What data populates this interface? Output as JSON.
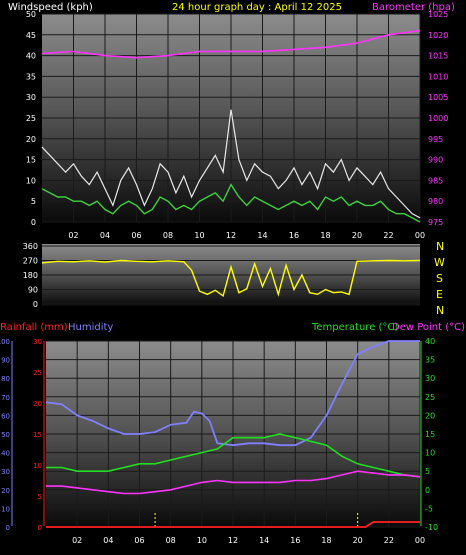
{
  "header": {
    "left_title": "Windspeed (kph)",
    "center_title": "24 hour graph day : April 12 2025",
    "right_title": "Barometer (hpa)"
  },
  "colors": {
    "background": "#000000",
    "plot_top": "#8c8c8c",
    "plot_bottom": "#0a0a0a",
    "windspeed": "#e8e8e8",
    "wind_avg": "#3fcf3f",
    "barometer": "#ff33ff",
    "direction": "#ffff00",
    "temperature": "#22dd22",
    "dew_point": "#ff33ff",
    "humidity": "#8080ff",
    "rainfall": "#ff2020",
    "marker": "#ffff00"
  },
  "labels": {
    "direction_letters": [
      "N",
      "W",
      "S",
      "E",
      "N"
    ],
    "rainfall": "Rainfall (mm)",
    "humidity": "Humidity",
    "temperature": "Temperature (°C)",
    "dew_point": "Dew Point (°C)"
  },
  "chart_data": [
    {
      "type": "line",
      "id": "wind-baro",
      "x": {
        "label": "",
        "ticks": [
          "02",
          "04",
          "06",
          "08",
          "10",
          "12",
          "14",
          "16",
          "18",
          "20",
          "22",
          "00"
        ],
        "range": [
          0,
          24
        ]
      },
      "y_left": {
        "label": "Windspeed (kph)",
        "range": [
          0,
          50
        ],
        "ticks": [
          0,
          5,
          10,
          15,
          20,
          25,
          30,
          35,
          40,
          45,
          50
        ]
      },
      "y_right": {
        "label": "Barometer (hpa)",
        "range": [
          975,
          1025
        ],
        "ticks": [
          975,
          980,
          985,
          990,
          995,
          1000,
          1005,
          1010,
          1015,
          1020,
          1025
        ]
      },
      "series": [
        {
          "name": "Windspeed (kph)",
          "axis": "left",
          "style": "gust",
          "x": [
            0.0,
            0.5,
            1.0,
            1.5,
            2.0,
            2.5,
            3.0,
            3.5,
            4.0,
            4.5,
            5.0,
            5.5,
            6.0,
            6.5,
            7.0,
            7.5,
            8.0,
            8.5,
            9.0,
            9.5,
            10.0,
            10.5,
            11.0,
            11.5,
            12.0,
            12.5,
            13.0,
            13.5,
            14.0,
            14.5,
            15.0,
            15.5,
            16.0,
            16.5,
            17.0,
            17.5,
            18.0,
            18.5,
            19.0,
            19.5,
            20.0,
            20.5,
            21.0,
            21.5,
            22.0,
            22.5,
            23.0,
            23.5,
            24.0
          ],
          "y": [
            18,
            16,
            14,
            12,
            14,
            11,
            9,
            12,
            8,
            4,
            10,
            13,
            9,
            4,
            8,
            14,
            12,
            7,
            11,
            6,
            10,
            13,
            16,
            12,
            27,
            15,
            10,
            14,
            12,
            11,
            8,
            10,
            13,
            9,
            12,
            8,
            14,
            12,
            15,
            10,
            13,
            11,
            9,
            12,
            8,
            6,
            4,
            2,
            1
          ]
        },
        {
          "name": "Wind average",
          "axis": "left",
          "style": "average",
          "x": [
            0.0,
            0.5,
            1.0,
            1.5,
            2.0,
            2.5,
            3.0,
            3.5,
            4.0,
            4.5,
            5.0,
            5.5,
            6.0,
            6.5,
            7.0,
            7.5,
            8.0,
            8.5,
            9.0,
            9.5,
            10.0,
            10.5,
            11.0,
            11.5,
            12.0,
            12.5,
            13.0,
            13.5,
            14.0,
            14.5,
            15.0,
            15.5,
            16.0,
            16.5,
            17.0,
            17.5,
            18.0,
            18.5,
            19.0,
            19.5,
            20.0,
            20.5,
            21.0,
            21.5,
            22.0,
            22.5,
            23.0,
            23.5,
            24.0
          ],
          "y": [
            8,
            7,
            6,
            6,
            5,
            5,
            4,
            5,
            3,
            2,
            4,
            5,
            4,
            2,
            3,
            6,
            5,
            3,
            4,
            3,
            5,
            6,
            7,
            5,
            9,
            6,
            4,
            6,
            5,
            4,
            3,
            4,
            5,
            4,
            5,
            3,
            6,
            5,
            6,
            4,
            5,
            4,
            4,
            5,
            3,
            2,
            2,
            1,
            0
          ]
        },
        {
          "name": "Barometer (hpa)",
          "axis": "right",
          "x": [
            0,
            2,
            4,
            6,
            8,
            10,
            12,
            14,
            16,
            18,
            20,
            22,
            24
          ],
          "y": [
            1015.5,
            1016,
            1015,
            1014.5,
            1015,
            1016,
            1016,
            1016,
            1016.5,
            1017,
            1018,
            1020,
            1021
          ]
        }
      ]
    },
    {
      "type": "line",
      "id": "direction",
      "y": {
        "ticks": [
          0,
          90,
          180,
          270,
          360
        ],
        "range": [
          0,
          360
        ]
      },
      "series": [
        {
          "name": "Wind direction",
          "x": [
            0,
            1,
            2,
            3,
            4,
            5,
            6,
            7,
            8,
            9,
            9.5,
            10,
            10.5,
            11,
            11.5,
            12,
            12.5,
            13,
            13.5,
            14,
            14.5,
            15,
            15.5,
            16,
            16.5,
            17,
            17.5,
            18,
            18.5,
            19,
            19.5,
            20,
            21,
            22,
            23,
            24
          ],
          "y": [
            255,
            265,
            262,
            268,
            260,
            270,
            265,
            262,
            268,
            262,
            210,
            80,
            60,
            85,
            50,
            230,
            70,
            95,
            250,
            110,
            220,
            60,
            240,
            90,
            180,
            70,
            60,
            90,
            70,
            75,
            60,
            265,
            268,
            270,
            268,
            270
          ]
        }
      ]
    },
    {
      "type": "line",
      "id": "temp-hum-rain",
      "x": {
        "ticks": [
          "02",
          "04",
          "06",
          "08",
          "10",
          "12",
          "14",
          "16",
          "18",
          "20",
          "22",
          "00"
        ],
        "range": [
          0,
          24
        ]
      },
      "y_humidity": {
        "label": "Humidity",
        "range": [
          0,
          100
        ],
        "ticks": [
          0,
          10,
          20,
          30,
          40,
          50,
          60,
          70,
          80,
          90,
          100
        ]
      },
      "y_rain": {
        "label": "Rainfall (mm)",
        "range": [
          0,
          30
        ],
        "ticks": [
          0,
          5,
          10,
          15,
          20,
          25,
          30
        ]
      },
      "y_temp": {
        "label": "Temperature (°C)",
        "range": [
          -10,
          40
        ],
        "ticks": [
          -10,
          -5,
          0,
          5,
          10,
          15,
          20,
          25,
          30,
          35,
          40
        ]
      },
      "series": [
        {
          "name": "Humidity",
          "axis": "humidity",
          "x": [
            0,
            1,
            2,
            3,
            4,
            5,
            6,
            7,
            8,
            9,
            9.5,
            10,
            10.5,
            11,
            12,
            13,
            14,
            15,
            16,
            17,
            18,
            19,
            19.5,
            20,
            21,
            22,
            23,
            24
          ],
          "y": [
            67,
            66,
            60,
            57,
            53,
            50,
            50,
            51,
            55,
            56,
            62,
            61,
            57,
            45,
            44,
            45,
            45,
            44,
            44,
            48,
            60,
            77,
            85,
            93,
            97,
            100,
            100,
            100
          ]
        },
        {
          "name": "Temperature (°C)",
          "axis": "temp",
          "x": [
            0,
            1,
            2,
            3,
            4,
            5,
            6,
            7,
            8,
            9,
            10,
            11,
            12,
            13,
            14,
            15,
            16,
            17,
            18,
            19,
            20,
            21,
            22,
            23,
            24
          ],
          "y": [
            6,
            6,
            5,
            5,
            5,
            6,
            7,
            7,
            8,
            9,
            10,
            11,
            14,
            14,
            14,
            15,
            14,
            13,
            12,
            9,
            7,
            6,
            5,
            4,
            3.5
          ]
        },
        {
          "name": "Dew Point (°C)",
          "axis": "temp",
          "x": [
            0,
            1,
            2,
            3,
            4,
            5,
            6,
            7,
            8,
            9,
            10,
            11,
            12,
            13,
            14,
            15,
            16,
            17,
            18,
            19,
            20,
            21,
            22,
            23,
            24
          ],
          "y": [
            1,
            1,
            0.5,
            0,
            -0.5,
            -1,
            -1,
            -0.5,
            0,
            1,
            2,
            2.5,
            2,
            2,
            2,
            2,
            2.5,
            2.5,
            3,
            4,
            5,
            4.5,
            4,
            4,
            3.5
          ]
        },
        {
          "name": "Rainfall (mm)",
          "axis": "rain",
          "x": [
            0,
            20.5,
            21,
            24
          ],
          "y": [
            0,
            0,
            0.8,
            0.8
          ]
        }
      ],
      "markers_x": [
        7,
        20
      ]
    }
  ]
}
